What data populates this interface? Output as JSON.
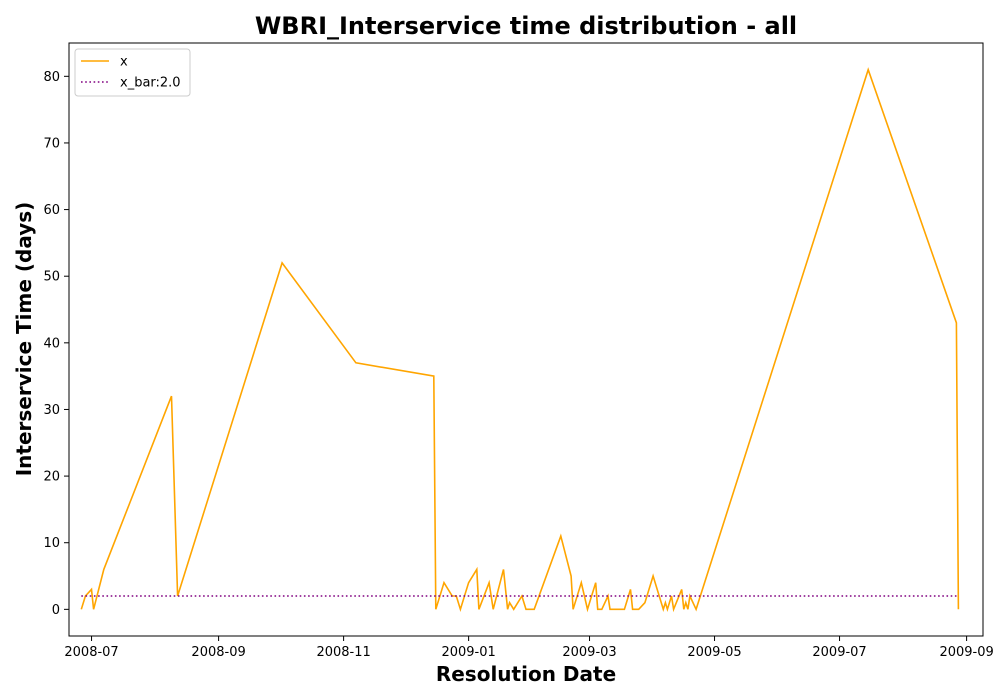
{
  "chart_data": {
    "type": "line",
    "title": "WBRI_Interservice time distribution - all",
    "xlabel": "Resolution Date",
    "ylabel": "Interservice Time (days)",
    "xlim": [
      "2008-06-20",
      "2009-09-09"
    ],
    "ylim": [
      -4,
      85
    ],
    "x_ticks": [
      "2008-07",
      "2008-09",
      "2008-11",
      "2009-01",
      "2009-03",
      "2009-05",
      "2009-07",
      "2009-09"
    ],
    "y_ticks": [
      0,
      10,
      20,
      30,
      40,
      50,
      60,
      70,
      80
    ],
    "grid": false,
    "legend_position": "top-left",
    "series": [
      {
        "name": "x",
        "color": "#ffa500",
        "style": "solid",
        "x": [
          "2008-06-26",
          "2008-06-28",
          "2008-07-01",
          "2008-07-02",
          "2008-07-07",
          "2008-08-09",
          "2008-08-12",
          "2008-10-02",
          "2008-11-07",
          "2008-12-15",
          "2008-12-16",
          "2008-12-20",
          "2008-12-24",
          "2008-12-26",
          "2008-12-28",
          "2009-01-01",
          "2009-01-05",
          "2009-01-06",
          "2009-01-11",
          "2009-01-13",
          "2009-01-18",
          "2009-01-20",
          "2009-01-21",
          "2009-01-23",
          "2009-01-27",
          "2009-01-29",
          "2009-01-31",
          "2009-02-02",
          "2009-02-15",
          "2009-02-20",
          "2009-02-21",
          "2009-02-25",
          "2009-02-28",
          "2009-03-04",
          "2009-03-05",
          "2009-03-06",
          "2009-03-07",
          "2009-03-10",
          "2009-03-11",
          "2009-03-17",
          "2009-03-18",
          "2009-03-21",
          "2009-03-22",
          "2009-03-25",
          "2009-03-28",
          "2009-04-01",
          "2009-04-06",
          "2009-04-07",
          "2009-04-08",
          "2009-04-10",
          "2009-04-11",
          "2009-04-15",
          "2009-04-16",
          "2009-04-17",
          "2009-04-18",
          "2009-04-19",
          "2009-04-22",
          "2009-07-15",
          "2009-08-27",
          "2009-08-28"
        ],
        "values": [
          0,
          2,
          3,
          0,
          6,
          32,
          2,
          52,
          37,
          35,
          0,
          4,
          2,
          2,
          0,
          4,
          6,
          0,
          4,
          0,
          6,
          0,
          1,
          0,
          2,
          0,
          0,
          0,
          11,
          5,
          0,
          4,
          0,
          4,
          0,
          0,
          0,
          2,
          0,
          0,
          0,
          3,
          0,
          0,
          1,
          5,
          0,
          1,
          0,
          2,
          0,
          3,
          0,
          1,
          0,
          2,
          0,
          81,
          43,
          0
        ]
      },
      {
        "name": "x_bar:2.0",
        "color": "#800080",
        "style": "dotted",
        "x": [
          "2008-06-26",
          "2009-08-28"
        ],
        "values": [
          2.0,
          2.0
        ]
      }
    ]
  }
}
